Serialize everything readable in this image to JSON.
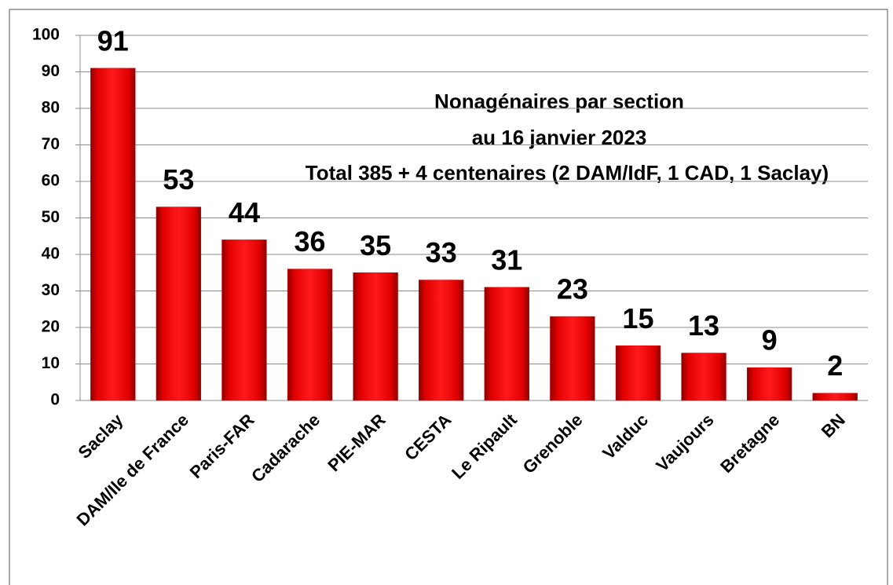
{
  "chart_data": {
    "type": "bar",
    "title": [
      "Nonagénaires par section",
      "au 16 janvier 2023"
    ],
    "subtitle": "Total 385 + 4 centenaires (2 DAM/IdF, 1 CAD, 1 Saclay)",
    "categories": [
      "Saclay",
      "DAM/Ile de France",
      "Paris-FAR",
      "Cadarache",
      "PIE-MAR",
      "CESTA",
      "Le Ripault",
      "Grenoble",
      "Valduc",
      "Vaujours",
      "Bretagne",
      "BN"
    ],
    "values": [
      91,
      53,
      44,
      36,
      35,
      33,
      31,
      23,
      15,
      13,
      9,
      2
    ],
    "color": "#e00000",
    "ylim": [
      0,
      100
    ],
    "yticks": [
      0,
      10,
      20,
      30,
      40,
      50,
      60,
      70,
      80,
      90,
      100
    ],
    "grid": true
  }
}
